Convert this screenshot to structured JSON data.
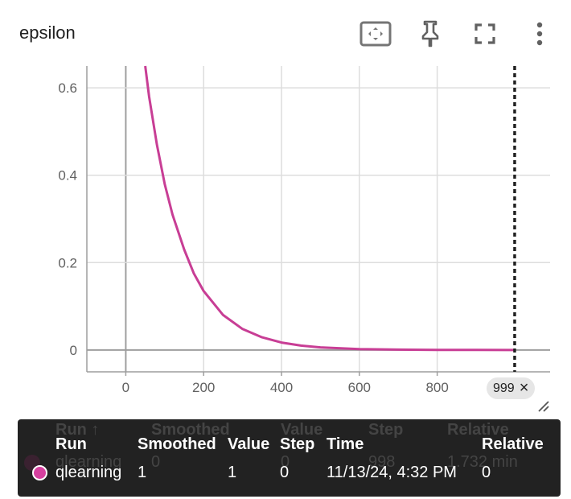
{
  "header": {
    "title": "epsilon",
    "icons": [
      "fit-domain-icon",
      "pin-icon",
      "fullscreen-icon",
      "more-vert-icon"
    ]
  },
  "chart_data": {
    "type": "line",
    "title": "epsilon",
    "xlabel": "",
    "ylabel": "",
    "xlim": [
      -100,
      1090
    ],
    "ylim": [
      -0.05,
      0.65
    ],
    "x_ticks": [
      "0",
      "200",
      "400",
      "600",
      "800"
    ],
    "y_ticks": [
      "0",
      "0.2",
      "0.4",
      "0.6"
    ],
    "grid": true,
    "series": [
      {
        "color": "#c83e95",
        "x": [
          50,
          60,
          80,
          100,
          120,
          150,
          175,
          200,
          250,
          300,
          350,
          400,
          450,
          500,
          600,
          700,
          800,
          900,
          999
        ],
        "y": [
          0.65,
          0.58,
          0.47,
          0.38,
          0.31,
          0.23,
          0.175,
          0.135,
          0.08,
          0.048,
          0.029,
          0.017,
          0.01,
          0.006,
          0.002,
          0.0008,
          0.0003,
          0.0001,
          0.0
        ]
      }
    ],
    "cursor_step": 999
  },
  "cursor_badge": {
    "label": "999",
    "close_glyph": "×"
  },
  "tooltip": {
    "ghost_headers": [
      "Run ↑",
      "Smoothed",
      "Value",
      "Step",
      "Relative"
    ],
    "ghost_row": [
      "qlearning",
      "0",
      "0",
      "998",
      "1.732 min"
    ],
    "headers": [
      "Run",
      "Smoothed",
      "Value",
      "Step",
      "Time",
      "Relative"
    ],
    "row": {
      "run": "qlearning",
      "smoothed": "1",
      "value": "1",
      "step": "0",
      "time": "11/13/24, 4:32 PM",
      "relative": "0"
    },
    "dot_color": "#d6409f"
  }
}
